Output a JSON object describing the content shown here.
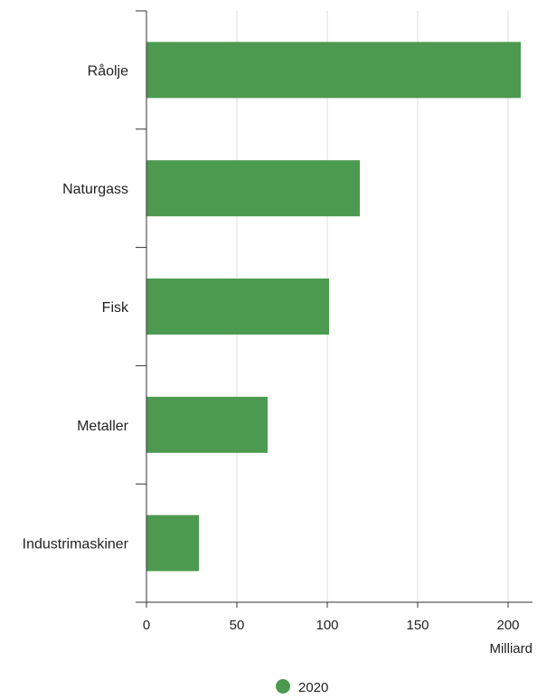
{
  "chart_data": {
    "type": "bar",
    "orientation": "horizontal",
    "categories": [
      "Råolje",
      "Naturgass",
      "Fisk",
      "Metaller",
      "Industrimaskiner"
    ],
    "series": [
      {
        "name": "2020",
        "values": [
          207,
          118,
          101,
          67,
          29
        ]
      }
    ],
    "x_unit": "Milliard",
    "xlim": [
      0,
      210
    ],
    "x_ticks": [
      0,
      50,
      100,
      150,
      200
    ],
    "x_tick_labels": [
      "0",
      "50",
      "100",
      "150",
      "200"
    ],
    "grid": true,
    "legend_position": "bottom-center"
  },
  "colors": {
    "bar": "#4c9a50",
    "grid": "#dddddd",
    "axis": "#333333"
  }
}
